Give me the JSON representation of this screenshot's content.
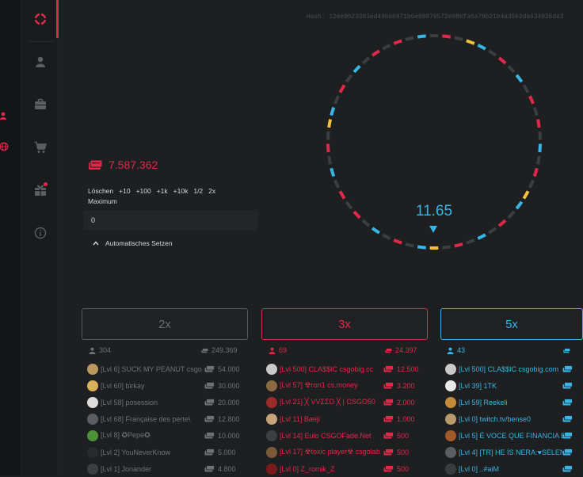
{
  "game": {
    "hash_label": "Hash: 12ee0023383ed49ba0971b6e08879572e086fa6a79b21b4a3562da634926da3",
    "roll_value": "11.65"
  },
  "wallet": {
    "balance": "7.587.362"
  },
  "bet_panel": {
    "quick_actions": [
      "Löschen",
      "+10",
      "+100",
      "+1k",
      "+10k",
      "1/2",
      "2x"
    ],
    "max_label": "Maximum",
    "amount_value": "0",
    "auto_bet_label": "Automatisches Setzen"
  },
  "columns": {
    "grey": {
      "button_label": "2x",
      "players": "304",
      "total": "249.369",
      "bets": [
        {
          "name": "[Lvl 6] SUCK MY PEANUT csgo",
          "amount": "54.000",
          "avatar_color": "#b89a5e"
        },
        {
          "name": "[Lvl 60] birkay",
          "amount": "30.000",
          "avatar_color": "#d8b15a"
        },
        {
          "name": "[Lvl 58] posession",
          "amount": "20.000",
          "avatar_color": "#dcdcdc"
        },
        {
          "name": "[Lvl 68] Française des perte\\",
          "amount": "12.800",
          "avatar_color": "#5a5d61"
        },
        {
          "name": "[Lvl 8] ✪Pepe✪",
          "amount": "10.000",
          "avatar_color": "#4e8f3a"
        },
        {
          "name": "[Lvl 2] YouNeverKnow",
          "amount": "5.000",
          "avatar_color": "#2a2b2d"
        },
        {
          "name": "[Lvl 1] Jonander",
          "amount": "4.800",
          "avatar_color": "#3d3f42"
        }
      ]
    },
    "red": {
      "button_label": "3x",
      "players": "69",
      "total": "24.397",
      "bets": [
        {
          "name": "[Lvl 500] CLA$$IC csgobig.cc",
          "amount": "12.500",
          "avatar_color": "#c9c9c9"
        },
        {
          "name": "[Lvl 57] ☢ron1 cs.money",
          "amount": "3.200",
          "avatar_color": "#8a6a42"
        },
        {
          "name": "[Lvl 21] ╳ VVΣΣD ╳ | CSGO50",
          "amount": "2.000",
          "avatar_color": "#9a2b2b"
        },
        {
          "name": "[Lvl 11] Bæiji",
          "amount": "1.000",
          "avatar_color": "#c7a37a"
        },
        {
          "name": "[Lvl 14] Eulo CSGOFade.Net",
          "amount": "500",
          "avatar_color": "#3c3e42"
        },
        {
          "name": "[Lvl 17] ☢toxic player☢ csgolab",
          "amount": "500",
          "avatar_color": "#7a5a3a"
        },
        {
          "name": "[Lvl 0] Z_romik_Z",
          "amount": "500",
          "avatar_color": "#7a1a1a"
        }
      ]
    },
    "blue": {
      "button_label": "5x",
      "players": "43",
      "bets": [
        {
          "name": "[Lvl 500] CLA$$IC csgobig.com",
          "avatar_color": "#c9c9c9"
        },
        {
          "name": "[Lvl 39] 1TK",
          "avatar_color": "#e9e9e9"
        },
        {
          "name": "[Lvl 59] Reekeli",
          "avatar_color": "#c48a3a"
        },
        {
          "name": "[Lvl 0] twitch.tv/bense0",
          "avatar_color": "#b79a6a"
        },
        {
          "name": "[Lvl 5] É VOCE QUE FINANCIA E",
          "avatar_color": "#a35a2a"
        },
        {
          "name": "[Lvl 4] [TR] HE İS NERA:♥SELEN",
          "avatar_color": "#5a5d61"
        },
        {
          "name": "[Lvl 0] ..#aiM",
          "avatar_color": "#3a3c40"
        }
      ]
    }
  },
  "colors": {
    "red": "#e0294a",
    "blue": "#39b4e5",
    "grey": "#3a3d42",
    "gold": "#f2c23a"
  },
  "icons": {
    "sidebar": [
      "logo-icon",
      "user-icon",
      "briefcase-icon",
      "cart-icon",
      "gift-icon",
      "info-icon"
    ],
    "rail": [
      "user-icon",
      "globe-icon"
    ]
  }
}
